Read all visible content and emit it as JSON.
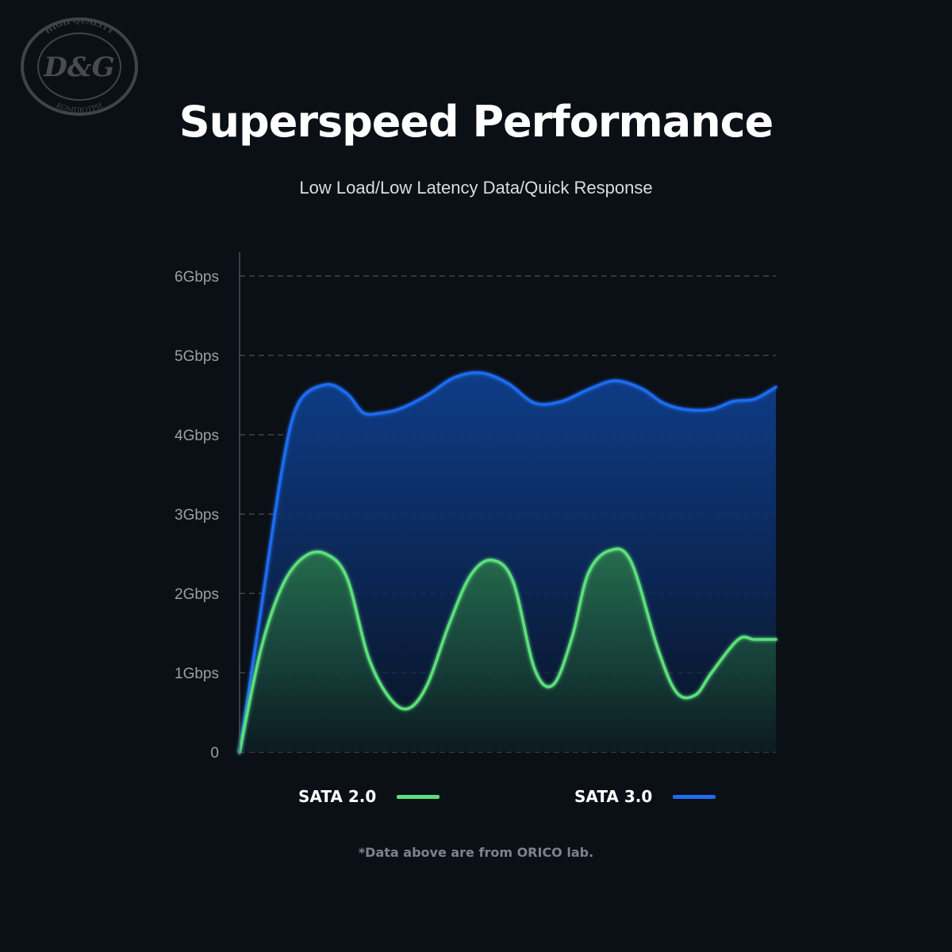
{
  "logo": {
    "text": "D&G",
    "ring_top": "HIGH QUALITY",
    "ring_bottom": "KOMПЮТРИ"
  },
  "header": {
    "title": "Superspeed Performance",
    "subtitle": "Low Load/Low Latency Data/Quick Response"
  },
  "legend": {
    "sata2_label": "SATA 2.0",
    "sata3_label": "SATA 3.0"
  },
  "footnote": "*Data above are from ORICO lab.",
  "colors": {
    "background": "#0b0f16",
    "sata2": "#5be07a",
    "sata3": "#1e6cf0",
    "grid": "#5a6069",
    "tick_text": "#9aa0a8"
  },
  "chart_data": {
    "type": "area",
    "ylim": [
      0,
      6
    ],
    "y_ticks": [
      {
        "value": 0,
        "label": "0"
      },
      {
        "value": 1,
        "label": "1Gbps"
      },
      {
        "value": 2,
        "label": "2Gbps"
      },
      {
        "value": 3,
        "label": "3Gbps"
      },
      {
        "value": 4,
        "label": "4Gbps"
      },
      {
        "value": 5,
        "label": "5Gbps"
      },
      {
        "value": 6,
        "label": "6Gbps"
      }
    ],
    "x_range": [
      0,
      100
    ],
    "grid": true,
    "legend_position": "bottom",
    "series": [
      {
        "name": "SATA 3.0",
        "color": "#1e6cf0",
        "x": [
          0,
          4,
          8,
          11,
          16,
          20,
          23,
          26,
          30,
          35,
          40,
          45,
          50,
          55,
          60,
          65,
          70,
          75,
          79,
          83,
          88,
          92,
          96,
          100
        ],
        "y": [
          0,
          1.8,
          3.6,
          4.4,
          4.63,
          4.52,
          4.28,
          4.27,
          4.33,
          4.5,
          4.72,
          4.78,
          4.65,
          4.4,
          4.42,
          4.57,
          4.68,
          4.58,
          4.4,
          4.32,
          4.32,
          4.42,
          4.45,
          4.6
        ]
      },
      {
        "name": "SATA 2.0",
        "color": "#5be07a",
        "x": [
          0,
          4,
          8,
          12,
          16,
          20,
          24,
          28,
          31.5,
          35,
          39,
          43,
          47,
          51,
          55,
          58.5,
          62,
          65,
          69,
          73,
          78,
          81.5,
          85,
          88,
          93,
          96,
          100
        ],
        "y": [
          0,
          1.3,
          2.1,
          2.46,
          2.5,
          2.2,
          1.2,
          0.68,
          0.55,
          0.85,
          1.6,
          2.22,
          2.42,
          2.15,
          1.05,
          0.85,
          1.45,
          2.25,
          2.54,
          2.4,
          1.3,
          0.75,
          0.72,
          1.0,
          1.42,
          1.42,
          1.42
        ]
      }
    ]
  }
}
